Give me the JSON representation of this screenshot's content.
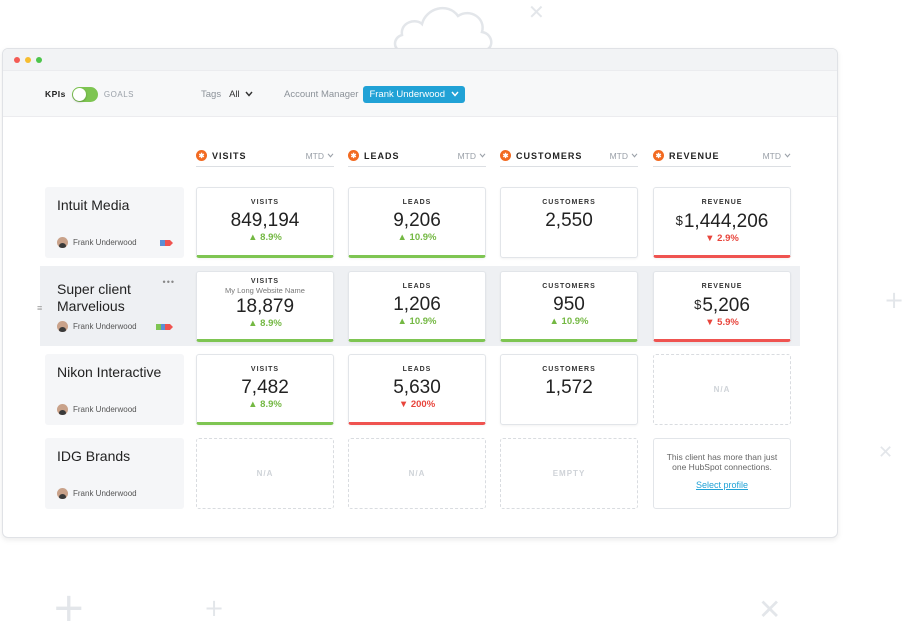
{
  "toolbar": {
    "kpis_label": "KPIs",
    "goals_label": "GOALS",
    "tags_label": "Tags",
    "tags_value": "All",
    "account_manager_label": "Account Manager",
    "account_manager_value": "Frank Underwood"
  },
  "columns": [
    {
      "title": "VISITS",
      "period": "MTD"
    },
    {
      "title": "LEADS",
      "period": "MTD"
    },
    {
      "title": "CUSTOMERS",
      "period": "MTD"
    },
    {
      "title": "REVENUE",
      "period": "MTD"
    }
  ],
  "rows": [
    {
      "client": "Intuit Media",
      "owner": "Frank Underwood",
      "cells": [
        {
          "label": "VISITS",
          "value": "849,194",
          "delta": "▲ 8.9%"
        },
        {
          "label": "LEADS",
          "value": "9,206",
          "delta": "▲ 10.9%"
        },
        {
          "label": "CUSTOMERS",
          "value": "2,550"
        },
        {
          "label": "REVENUE",
          "currency": "$",
          "value": "1,444,206",
          "delta": "▼ 2.9%"
        }
      ]
    },
    {
      "client": "Super client Marvelious",
      "owner": "Frank Underwood",
      "cells": [
        {
          "label": "VISITS",
          "sublabel": "My Long Website Name",
          "value": "18,879",
          "delta": "▲ 8.9%"
        },
        {
          "label": "LEADS",
          "value": "1,206",
          "delta": "▲ 10.9%"
        },
        {
          "label": "CUSTOMERS",
          "value": "950",
          "delta": "▲ 10.9%"
        },
        {
          "label": "REVENUE",
          "currency": "$",
          "value": "5,206",
          "delta": "▼ 5.9%"
        }
      ]
    },
    {
      "client": "Nikon Interactive",
      "owner": "Frank Underwood",
      "cells": [
        {
          "label": "VISITS",
          "value": "7,482",
          "delta": "▲ 8.9%"
        },
        {
          "label": "LEADS",
          "value": "5,630",
          "delta": "▼ 200%"
        },
        {
          "label": "CUSTOMERS",
          "value": "1,572"
        },
        {
          "placeholder": "N/A"
        }
      ]
    },
    {
      "client": "IDG Brands",
      "owner": "Frank Underwood",
      "cells": [
        {
          "placeholder": "N/A"
        },
        {
          "placeholder": "N/A"
        },
        {
          "placeholder": "EMPTY"
        },
        {
          "message": "This client has more than just one HubSpot connections.",
          "link": "Select profile"
        }
      ]
    }
  ],
  "colors": {
    "accent": "#21a2d6",
    "hubspot": "#f26a21",
    "positive": "#7ec552",
    "negative": "#ef5350"
  }
}
